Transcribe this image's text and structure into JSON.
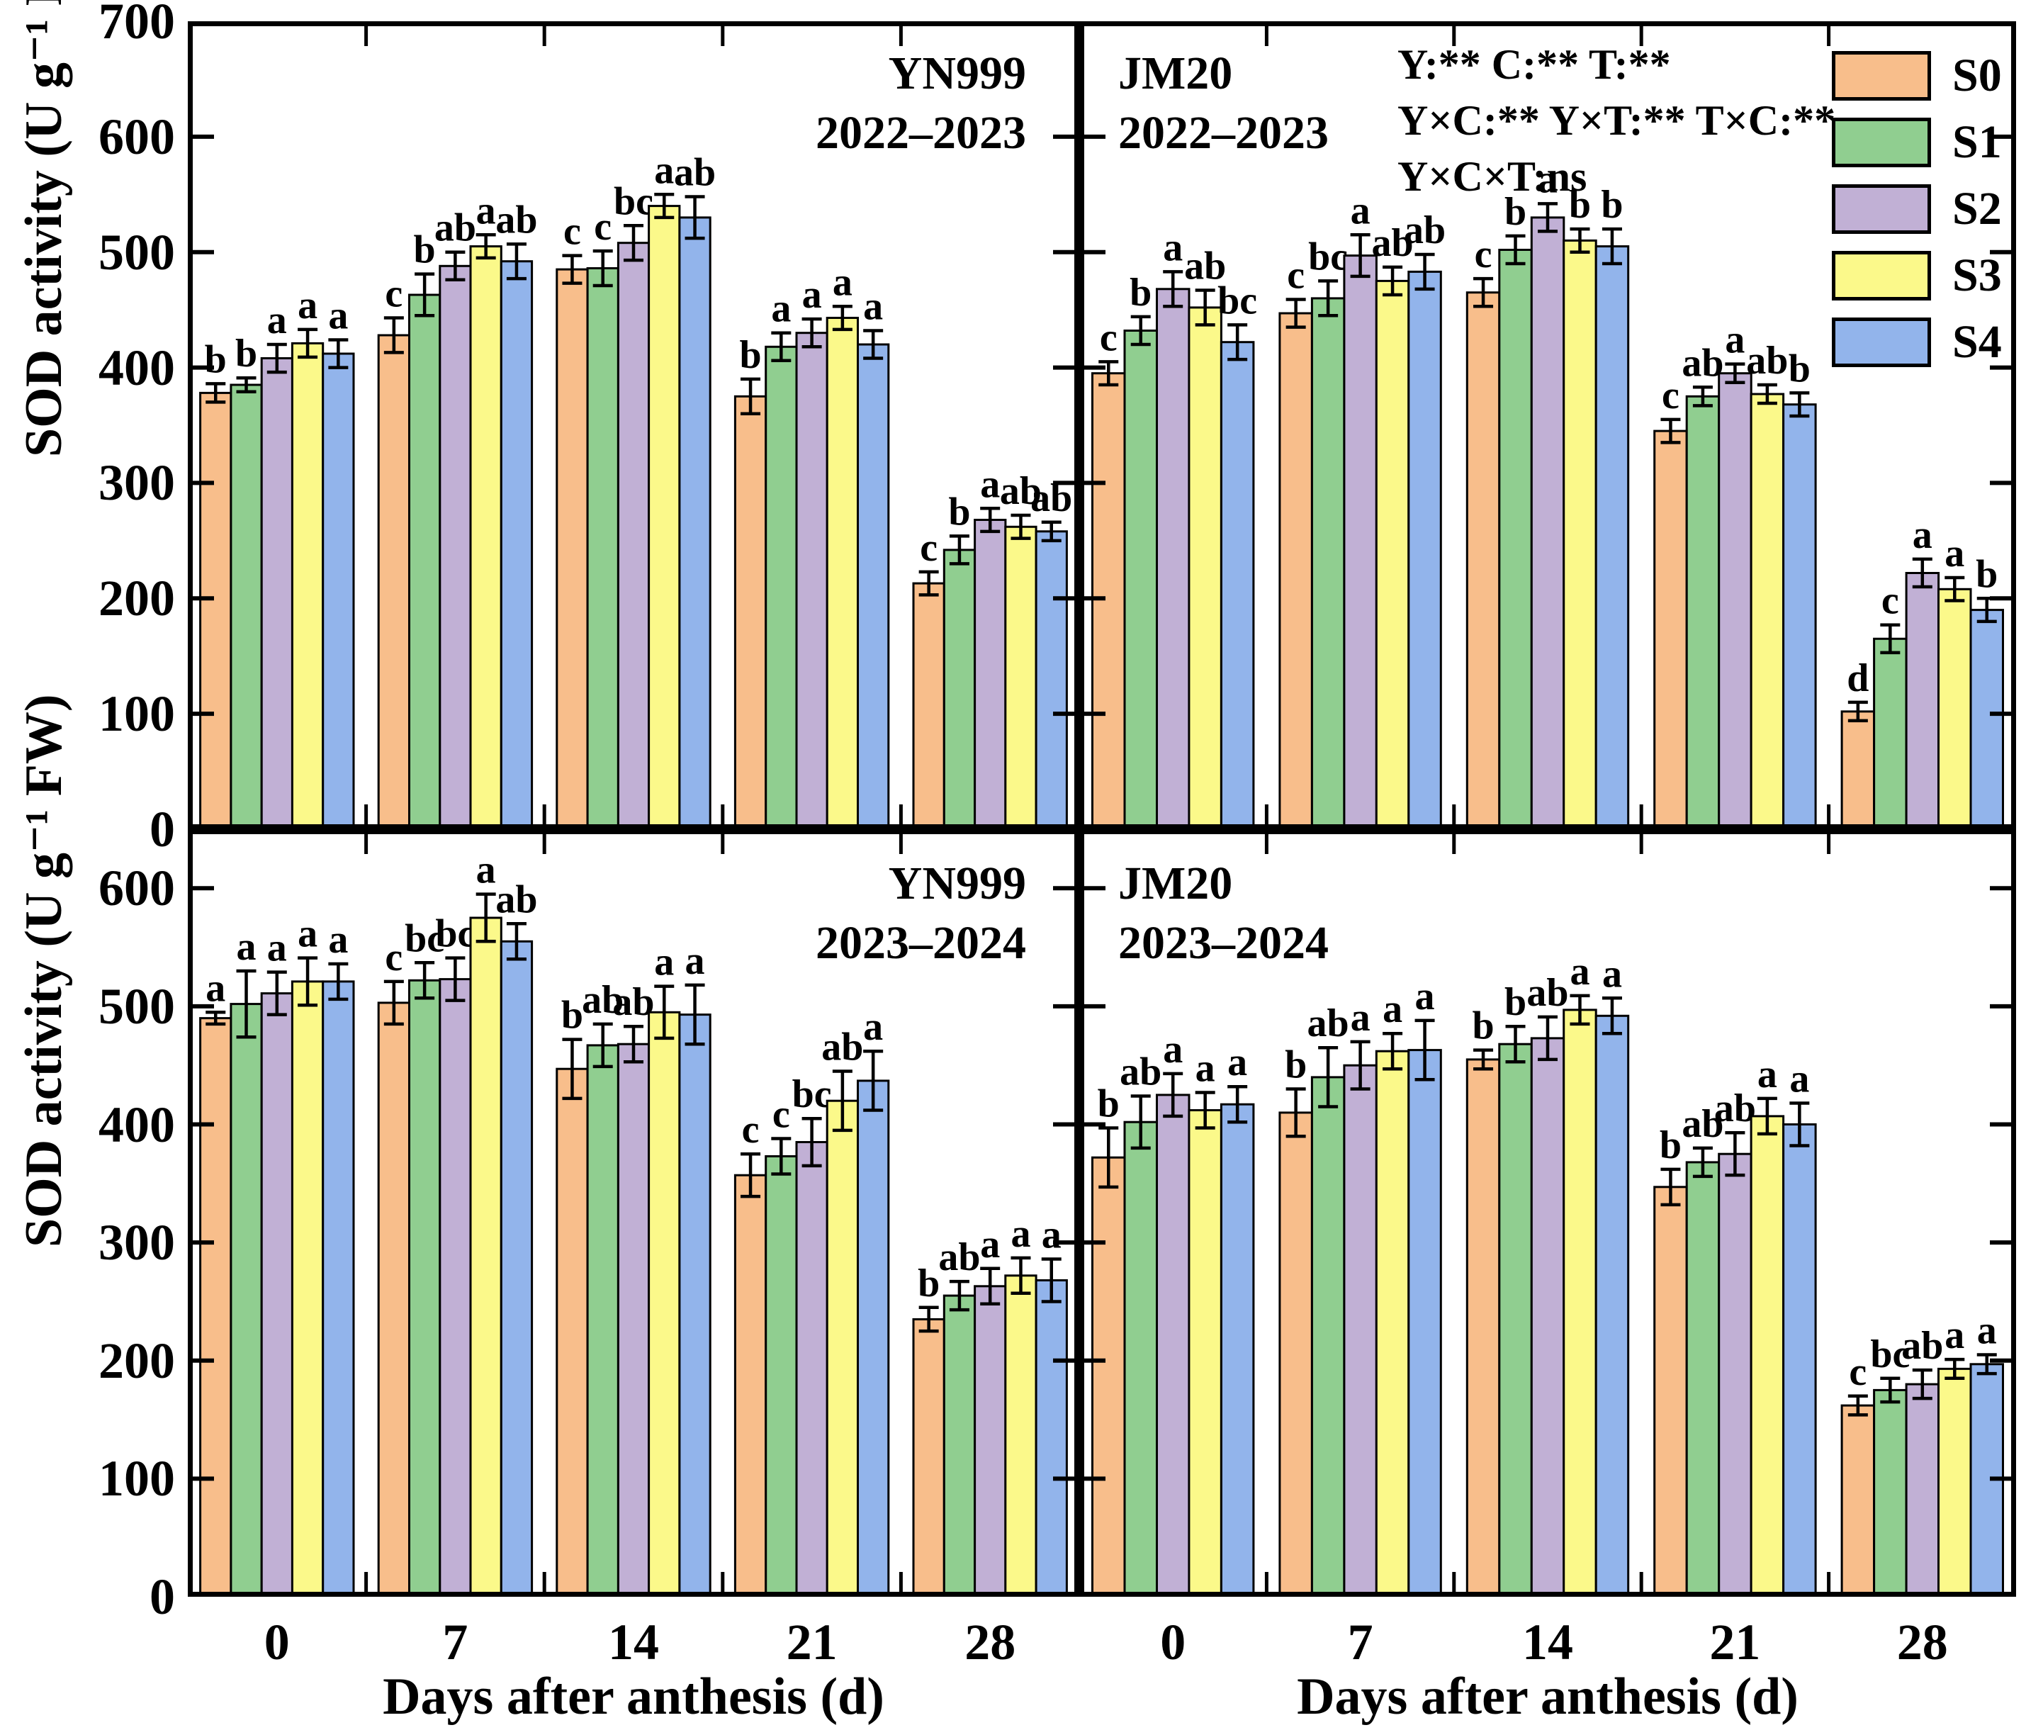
{
  "figure": {
    "y_axis_label": "SOD activity (U g⁻¹ FW)",
    "x_axis_label": "Days after anthesis (d)",
    "anova_lines": [
      "Y:** C:** T:**",
      "Y×C:** Y×T:** T×C:**",
      "Y×C×T:ns"
    ],
    "legend": [
      {
        "label": "S0",
        "color": "#F8BE8B"
      },
      {
        "label": "S1",
        "color": "#90CE90"
      },
      {
        "label": "S2",
        "color": "#C1B0D5"
      },
      {
        "label": "S3",
        "color": "#FBF98A"
      },
      {
        "label": "S4",
        "color": "#92B4EB"
      }
    ]
  },
  "chart_data": [
    {
      "type": "bar",
      "panel": "top-left",
      "title_lines": [
        "YN999",
        "2022–2023"
      ],
      "title_align": "right",
      "xlabel": "Days after anthesis (d)",
      "ylabel": "SOD activity (U g⁻¹ FW)",
      "categories": [
        "0",
        "7",
        "14",
        "21",
        "28"
      ],
      "ylim": [
        0,
        700
      ],
      "ytick_step": 100,
      "ytick_labels": [
        "0",
        "100",
        "200",
        "300",
        "400",
        "500",
        "600",
        "700"
      ],
      "series": [
        {
          "name": "S0",
          "color": "#F8BE8B",
          "values": [
            378,
            428,
            485,
            375,
            213
          ],
          "errors": [
            8,
            15,
            12,
            15,
            10
          ],
          "letters": [
            "b",
            "c",
            "c",
            "b",
            "c"
          ]
        },
        {
          "name": "S1",
          "color": "#90CE90",
          "values": [
            385,
            463,
            486,
            418,
            242
          ],
          "errors": [
            6,
            18,
            15,
            12,
            12
          ],
          "letters": [
            "b",
            "b",
            "c",
            "a",
            "b"
          ]
        },
        {
          "name": "S2",
          "color": "#C1B0D5",
          "values": [
            408,
            488,
            508,
            430,
            268
          ],
          "errors": [
            12,
            12,
            15,
            12,
            10
          ],
          "letters": [
            "a",
            "ab",
            "bc",
            "a",
            "a"
          ]
        },
        {
          "name": "S3",
          "color": "#FBF98A",
          "values": [
            421,
            505,
            540,
            443,
            262
          ],
          "errors": [
            12,
            10,
            10,
            10,
            10
          ],
          "letters": [
            "a",
            "a",
            "a",
            "a",
            "ab"
          ]
        },
        {
          "name": "S4",
          "color": "#92B4EB",
          "values": [
            412,
            492,
            530,
            420,
            258
          ],
          "errors": [
            12,
            15,
            18,
            12,
            8
          ],
          "letters": [
            "a",
            "ab",
            "ab",
            "a",
            "ab"
          ]
        }
      ]
    },
    {
      "type": "bar",
      "panel": "top-right",
      "title_lines": [
        "JM20",
        "2022–2023"
      ],
      "title_align": "left",
      "xlabel": "Days after anthesis (d)",
      "ylabel": "SOD activity (U g⁻¹ FW)",
      "categories": [
        "0",
        "7",
        "14",
        "21",
        "28"
      ],
      "ylim": [
        0,
        700
      ],
      "ytick_step": 100,
      "ytick_labels": [],
      "series": [
        {
          "name": "S0",
          "color": "#F8BE8B",
          "values": [
            395,
            447,
            465,
            345,
            102
          ],
          "errors": [
            10,
            12,
            12,
            10,
            8
          ],
          "letters": [
            "c",
            "c",
            "c",
            "c",
            "d"
          ]
        },
        {
          "name": "S1",
          "color": "#90CE90",
          "values": [
            432,
            460,
            502,
            375,
            165
          ],
          "errors": [
            12,
            15,
            12,
            8,
            12
          ],
          "letters": [
            "b",
            "bc",
            "b",
            "ab",
            "c"
          ]
        },
        {
          "name": "S2",
          "color": "#C1B0D5",
          "values": [
            468,
            497,
            530,
            395,
            222
          ],
          "errors": [
            15,
            18,
            12,
            8,
            12
          ],
          "letters": [
            "a",
            "a",
            "a",
            "a",
            "a"
          ]
        },
        {
          "name": "S3",
          "color": "#FBF98A",
          "values": [
            452,
            475,
            510,
            377,
            208
          ],
          "errors": [
            15,
            12,
            10,
            8,
            10
          ],
          "letters": [
            "ab",
            "ab",
            "b",
            "ab",
            "a"
          ]
        },
        {
          "name": "S4",
          "color": "#92B4EB",
          "values": [
            422,
            483,
            505,
            368,
            190
          ],
          "errors": [
            15,
            15,
            15,
            10,
            10
          ],
          "letters": [
            "bc",
            "ab",
            "b",
            "b",
            "b"
          ]
        }
      ]
    },
    {
      "type": "bar",
      "panel": "bottom-left",
      "title_lines": [
        "YN999",
        "2023–2024"
      ],
      "title_align": "right",
      "xlabel": "Days after anthesis (d)",
      "ylabel": "SOD activity (U g⁻¹ FW)",
      "categories": [
        "0",
        "7",
        "14",
        "21",
        "28"
      ],
      "ylim": [
        0,
        650
      ],
      "ytick_step": 100,
      "ytick_labels": [
        "0",
        "100",
        "200",
        "300",
        "400",
        "500",
        "600"
      ],
      "series": [
        {
          "name": "S0",
          "color": "#F8BE8B",
          "values": [
            490,
            503,
            447,
            357,
            235
          ],
          "errors": [
            5,
            18,
            25,
            18,
            10
          ],
          "letters": [
            "a",
            "c",
            "b",
            "c",
            "b"
          ]
        },
        {
          "name": "S1",
          "color": "#90CE90",
          "values": [
            502,
            522,
            467,
            373,
            255
          ],
          "errors": [
            28,
            15,
            18,
            15,
            12
          ],
          "letters": [
            "a",
            "bc",
            "ab",
            "c",
            "ab"
          ]
        },
        {
          "name": "S2",
          "color": "#C1B0D5",
          "values": [
            511,
            523,
            468,
            385,
            263
          ],
          "errors": [
            18,
            18,
            15,
            20,
            15
          ],
          "letters": [
            "a",
            "bc",
            "ab",
            "bc",
            "a"
          ]
        },
        {
          "name": "S3",
          "color": "#FBF98A",
          "values": [
            521,
            575,
            495,
            420,
            272
          ],
          "errors": [
            20,
            20,
            22,
            25,
            15
          ],
          "letters": [
            "a",
            "a",
            "a",
            "ab",
            "a"
          ]
        },
        {
          "name": "S4",
          "color": "#92B4EB",
          "values": [
            521,
            555,
            493,
            437,
            268
          ],
          "errors": [
            15,
            15,
            25,
            25,
            18
          ],
          "letters": [
            "a",
            "ab",
            "a",
            "a",
            "a"
          ]
        }
      ]
    },
    {
      "type": "bar",
      "panel": "bottom-right",
      "title_lines": [
        "JM20",
        "2023–2024"
      ],
      "title_align": "left",
      "xlabel": "Days after anthesis (d)",
      "ylabel": "SOD activity (U g⁻¹ FW)",
      "categories": [
        "0",
        "7",
        "14",
        "21",
        "28"
      ],
      "ylim": [
        0,
        650
      ],
      "ytick_step": 100,
      "ytick_labels": [],
      "series": [
        {
          "name": "S0",
          "color": "#F8BE8B",
          "values": [
            372,
            410,
            455,
            347,
            162
          ],
          "errors": [
            25,
            20,
            8,
            15,
            8
          ],
          "letters": [
            "b",
            "b",
            "b",
            "b",
            "c"
          ]
        },
        {
          "name": "S1",
          "color": "#90CE90",
          "values": [
            402,
            440,
            468,
            368,
            175
          ],
          "errors": [
            22,
            25,
            15,
            12,
            10
          ],
          "letters": [
            "ab",
            "ab",
            "b",
            "ab",
            "bc"
          ]
        },
        {
          "name": "S2",
          "color": "#C1B0D5",
          "values": [
            425,
            450,
            473,
            375,
            180
          ],
          "errors": [
            18,
            20,
            18,
            18,
            12
          ],
          "letters": [
            "a",
            "a",
            "ab",
            "ab",
            "ab"
          ]
        },
        {
          "name": "S3",
          "color": "#FBF98A",
          "values": [
            412,
            462,
            497,
            407,
            193
          ],
          "errors": [
            15,
            15,
            12,
            15,
            8
          ],
          "letters": [
            "a",
            "a",
            "a",
            "a",
            "a"
          ]
        },
        {
          "name": "S4",
          "color": "#92B4EB",
          "values": [
            417,
            463,
            492,
            400,
            197
          ],
          "errors": [
            15,
            25,
            15,
            18,
            8
          ],
          "letters": [
            "a",
            "a",
            "a",
            "a",
            "a"
          ]
        }
      ]
    }
  ]
}
